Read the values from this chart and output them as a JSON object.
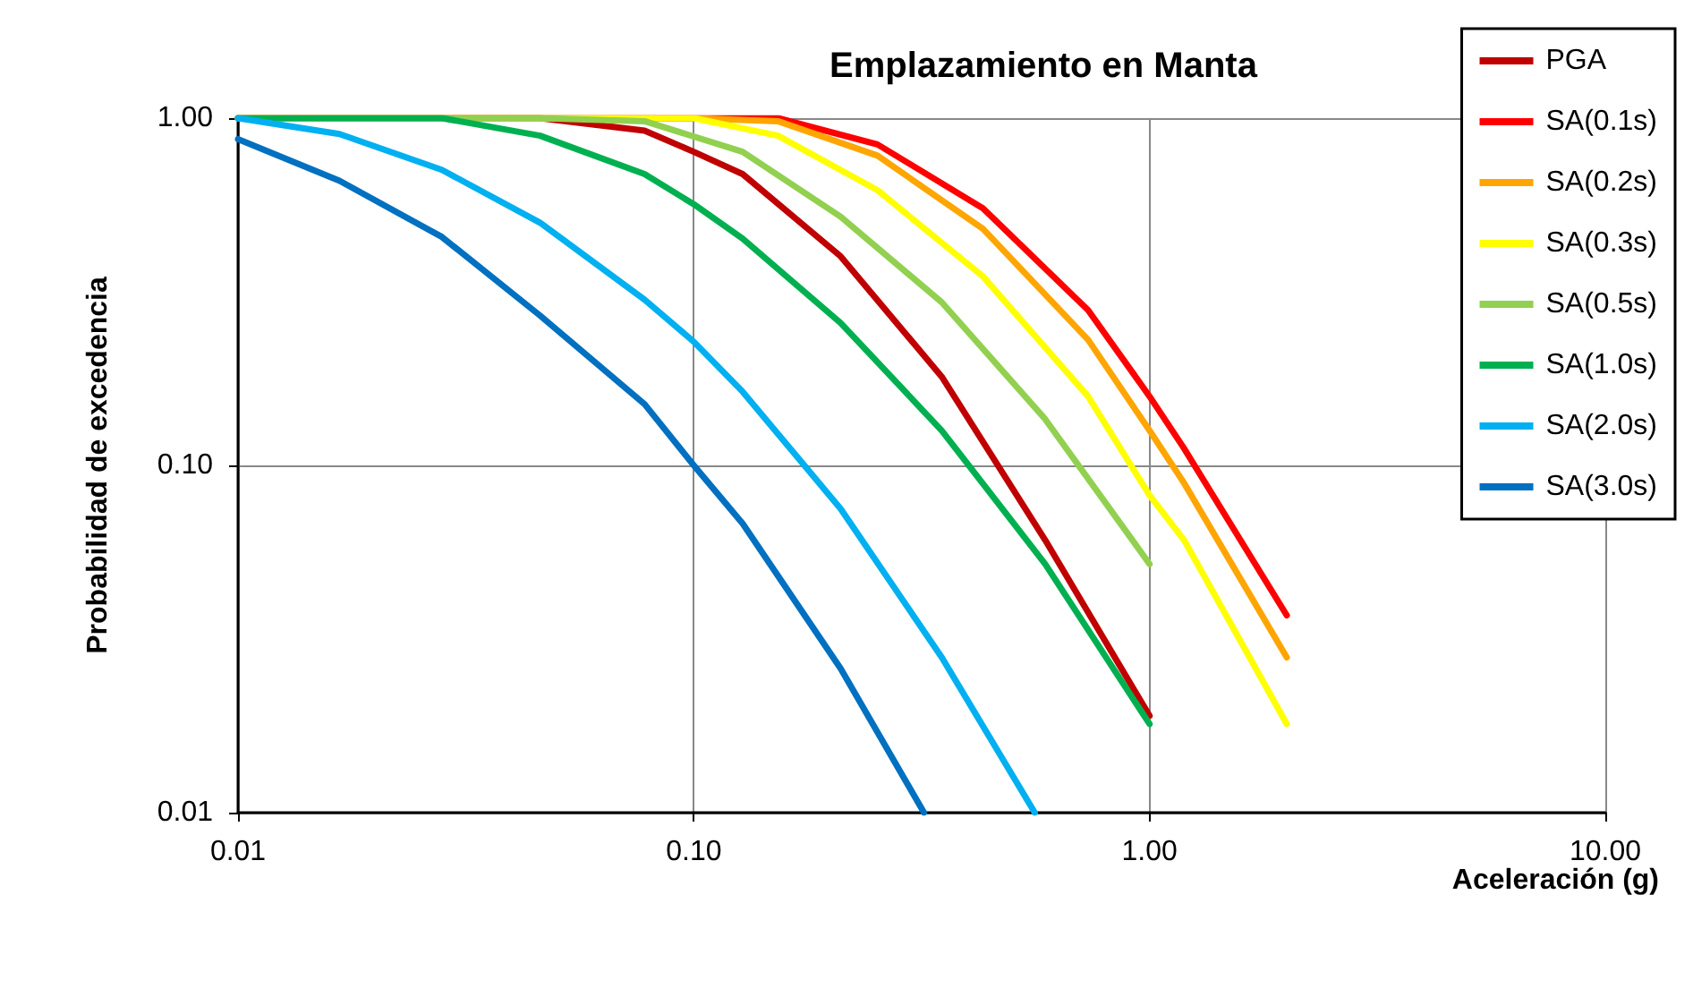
{
  "chart_data": {
    "type": "line",
    "title": "Emplazamiento en Manta",
    "xlabel": "Aceleración (g)",
    "ylabel": "Probabilidad de excedencia",
    "log": "xy",
    "grid": true,
    "legend": "top right",
    "marker": "none",
    "line_style": "solid",
    "xlim": [
      0.01,
      10
    ],
    "xticks": [
      0.01,
      {
        "value": 0.1,
        "label": "0.10"
      },
      {
        "value": 1,
        "label": "1.00"
      },
      {
        "value": 10,
        "label": "10.00"
      }
    ],
    "ylim": [
      0.01,
      1
    ],
    "yticks": [
      0.01,
      {
        "value": 0.1,
        "label": "0.10"
      },
      {
        "value": 1,
        "label": "1.00"
      }
    ],
    "series": [
      {
        "name": "PGA",
        "color": "#c00000",
        "x": [
          0.01,
          0.028,
          0.046,
          0.078,
          0.1,
          0.128,
          0.21,
          0.35,
          0.59,
          1.0
        ],
        "values": [
          1.0,
          1.0,
          1.0,
          0.92,
          0.8,
          0.69,
          0.4,
          0.18,
          0.061,
          0.019
        ]
      },
      {
        "name": "SA(0.1s)",
        "color": "#ff0000",
        "x": [
          0.01,
          0.1,
          0.153,
          0.253,
          0.431,
          0.733,
          1.0,
          1.19,
          2.0
        ],
        "values": [
          1.0,
          1.0,
          1.0,
          0.84,
          0.55,
          0.28,
          0.158,
          0.112,
          0.037
        ]
      },
      {
        "name": "SA(0.2s)",
        "color": "#ffa500",
        "x": [
          0.01,
          0.1,
          0.153,
          0.253,
          0.431,
          0.733,
          1.0,
          1.19,
          2.0
        ],
        "values": [
          1.0,
          1.0,
          0.98,
          0.78,
          0.48,
          0.23,
          0.126,
          0.089,
          0.028
        ]
      },
      {
        "name": "SA(0.3s)",
        "color": "#ffff00",
        "x": [
          0.01,
          0.1,
          0.153,
          0.253,
          0.431,
          0.733,
          1.0,
          1.19,
          2.0
        ],
        "values": [
          1.0,
          1.0,
          0.89,
          0.62,
          0.35,
          0.158,
          0.082,
          0.061,
          0.018
        ]
      },
      {
        "name": "SA(0.5s)",
        "color": "#92d050",
        "x": [
          0.01,
          0.046,
          0.078,
          0.128,
          0.21,
          0.35,
          0.59,
          1.0
        ],
        "values": [
          1.0,
          1.0,
          0.98,
          0.8,
          0.52,
          0.295,
          0.136,
          0.052
        ]
      },
      {
        "name": "SA(1.0s)",
        "color": "#00b050",
        "x": [
          0.01,
          0.028,
          0.046,
          0.078,
          0.1,
          0.128,
          0.21,
          0.35,
          0.59,
          1.0
        ],
        "values": [
          1.0,
          1.0,
          0.89,
          0.69,
          0.565,
          0.45,
          0.257,
          0.126,
          0.052,
          0.018
        ]
      },
      {
        "name": "SA(2.0s)",
        "color": "#00b0f0",
        "x": [
          0.01,
          0.0167,
          0.028,
          0.046,
          0.078,
          0.1,
          0.128,
          0.21,
          0.35,
          0.56
        ],
        "values": [
          1.0,
          0.9,
          0.71,
          0.5,
          0.3,
          0.227,
          0.163,
          0.075,
          0.028,
          0.01
        ]
      },
      {
        "name": "SA(3.0s)",
        "color": "#0070c0",
        "x": [
          0.01,
          0.0167,
          0.028,
          0.046,
          0.078,
          0.1,
          0.128,
          0.21,
          0.32
        ],
        "values": [
          0.87,
          0.66,
          0.455,
          0.27,
          0.15,
          0.1,
          0.068,
          0.026,
          0.01
        ]
      }
    ]
  }
}
